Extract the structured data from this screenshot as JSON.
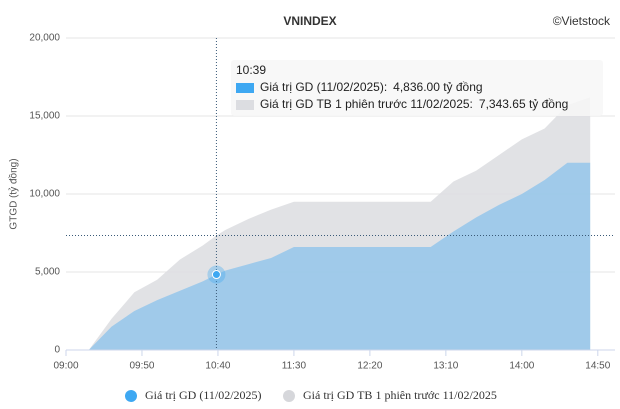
{
  "chart_data": {
    "type": "area",
    "title": "VNINDEX",
    "credit": "©Vietstock",
    "y_label": "GTGD (tỷ đồng)",
    "x": [
      "09:15",
      "09:30",
      "09:45",
      "10:00",
      "10:15",
      "10:30",
      "10:39",
      "10:45",
      "11:00",
      "11:15",
      "11:30",
      "13:00",
      "13:15",
      "13:30",
      "13:45",
      "14:00",
      "14:15",
      "14:30",
      "14:45"
    ],
    "series": [
      {
        "name": "Giá trị GD TB 1 phiên trước 11/02/2025",
        "color": "#dcdde1",
        "values": [
          0,
          2000,
          3700,
          4500,
          5800,
          6700,
          7343.65,
          7700,
          8400,
          9000,
          9500,
          9500,
          10800,
          11500,
          12500,
          13500,
          14200,
          15700,
          16200
        ]
      },
      {
        "name": "Giá trị GD (11/02/2025)",
        "color": "#3ea8f2",
        "values": [
          0,
          1500,
          2500,
          3200,
          3800,
          4400,
          4836,
          5100,
          5500,
          5900,
          6600,
          6600,
          7600,
          8500,
          9300,
          10000,
          10900,
          12000,
          12000
        ]
      }
    ],
    "xlim": [
      "09:00",
      "15:00"
    ],
    "xticks": [
      "09:00",
      "09:50",
      "10:40",
      "11:30",
      "12:20",
      "13:10",
      "14:00",
      "14:50"
    ],
    "ylim": [
      0,
      20000
    ],
    "yticks": [
      0,
      {
        "value": 5000,
        "label": "5,000"
      },
      {
        "value": 10000,
        "label": "10,000"
      },
      {
        "value": 15000,
        "label": "15,000"
      },
      {
        "value": 20000,
        "label": "20,000"
      }
    ],
    "grid": true,
    "tooltip": {
      "x": "10:39",
      "series": [
        {
          "label": "Giá trị GD (11/02/2025):",
          "value": 4836,
          "value_label": "4,836.00 tỷ đồng",
          "color": "#3ea8f2"
        },
        {
          "label": "Giá trị GD TB 1 phiên trước 11/02/2025:",
          "value": 7343.65,
          "value_label": "7,343.65 tỷ đồng",
          "color": "#dcdde1"
        }
      ]
    }
  }
}
